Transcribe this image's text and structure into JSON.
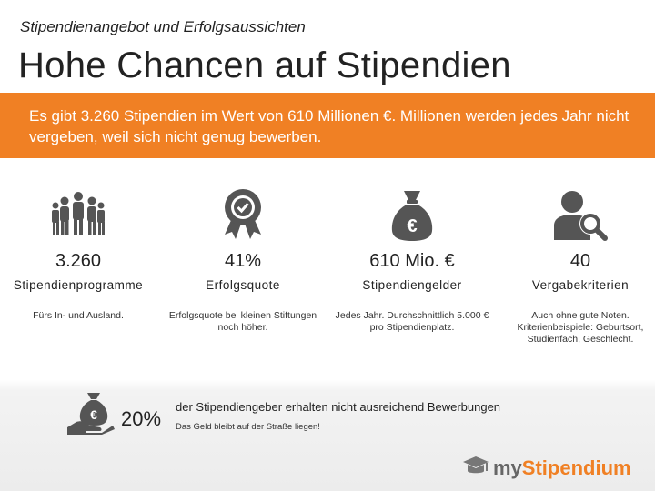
{
  "header": {
    "subtitle": "Stipendienangebot und Erfolgsaussichten",
    "title": "Hohe Chancen auf Stipendien"
  },
  "banner": {
    "text": "Es gibt 3.260 Stipendien im Wert von 610 Millionen €. Millionen werden jedes Jahr nicht vergeben, weil sich nicht genug bewerben.",
    "color": "#f08024"
  },
  "stats": [
    {
      "icon": "people-group-icon",
      "value": "3.260",
      "label": "Stipendienprogramme",
      "desc": "Fürs In- und Ausland."
    },
    {
      "icon": "award-badge-icon",
      "value": "41%",
      "label": "Erfolgsquote",
      "desc": "Erfolgsquote bei kleinen Stiftungen noch höher."
    },
    {
      "icon": "money-bag-icon",
      "value": "610 Mio. €",
      "label": "Stipendiengelder",
      "desc": "Jedes Jahr. Durchschnittlich 5.000 € pro Stipendienplatz."
    },
    {
      "icon": "person-search-icon",
      "value": "40",
      "label": "Vergabekriterien",
      "desc": "Auch ohne gute Noten. Kriterienbeispiele: Geburtsort, Studienfach, Geschlecht."
    }
  ],
  "footer": {
    "icon": "hand-money-bag-icon",
    "percent": "20%",
    "text": "der Stipendiengeber erhalten nicht ausreichend Bewerbungen",
    "subtext": "Das Geld bleibt auf der Straße liegen!"
  },
  "logo": {
    "icon": "graduation-cap-icon",
    "part1": "my",
    "part2": "Stipendium"
  },
  "colors": {
    "accent": "#f08024",
    "icon": "#555555"
  }
}
